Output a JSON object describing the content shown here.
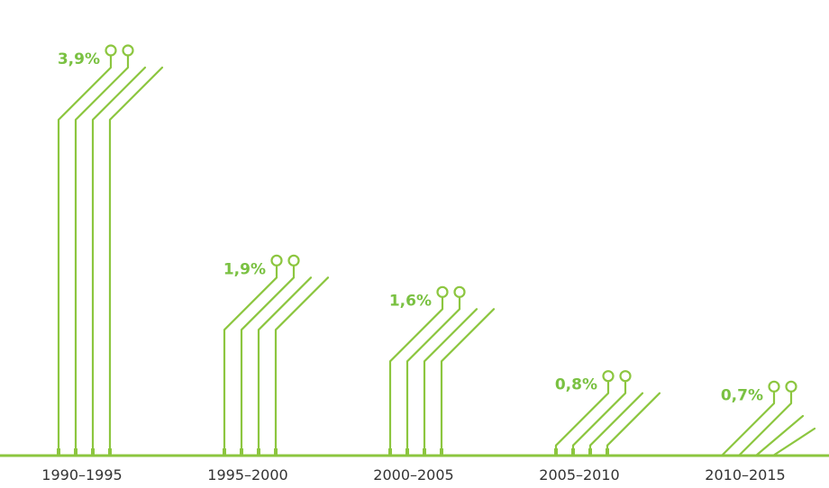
{
  "chart_data": {
    "type": "bar",
    "categories": [
      "1990–1995",
      "1995–2000",
      "2000–2005",
      "2005–2010",
      "2010–2015"
    ],
    "values": [
      3.9,
      1.9,
      1.6,
      0.8,
      0.7
    ],
    "value_labels": [
      "3,9%",
      "1,9%",
      "1,6%",
      "0,8%",
      "0,7%"
    ],
    "title": "",
    "xlabel": "",
    "ylabel": "",
    "ylim": [
      0,
      4.2
    ],
    "grid": false,
    "legend": "none",
    "colors": {
      "accent": "#8cc63f",
      "label": "#7ac142",
      "axis_text": "#333333"
    }
  }
}
